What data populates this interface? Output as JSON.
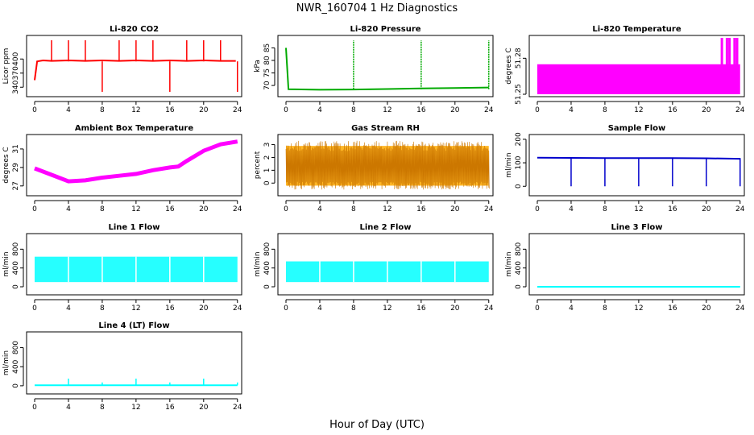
{
  "title": "NWR_160704  1 Hz Diagnostics",
  "xlabel": "Hour of Day (UTC)",
  "chart_data": [
    {
      "type": "line",
      "title": "Li-820 CO2",
      "ylabel": "Licor ppm",
      "color": "#ff0000",
      "xlim": [
        0,
        24.5
      ],
      "ylim": [
        325,
        445
      ],
      "xticks": [
        0,
        4,
        8,
        12,
        16,
        20,
        24
      ],
      "yticks": [
        340,
        370,
        400
      ],
      "series": [
        {
          "x": [
            0,
            0.3,
            1,
            2,
            4,
            6,
            8,
            10,
            12,
            14,
            16,
            18,
            20,
            22,
            23.8
          ],
          "y": [
            355,
            395,
            397,
            396,
            397,
            396,
            397,
            396,
            397,
            396,
            397,
            396,
            397,
            396,
            396
          ]
        }
      ]
    },
    {
      "type": "line",
      "title": "Li-820 Pressure",
      "ylabel": "kPa",
      "color": "#00aa00",
      "xlim": [
        0,
        24.5
      ],
      "ylim": [
        66.5,
        89
      ],
      "xticks": [
        0,
        4,
        8,
        12,
        16,
        20,
        24
      ],
      "yticks": [
        70,
        75,
        80,
        85
      ],
      "series": [
        {
          "x": [
            0,
            0.3,
            4,
            8,
            12,
            16,
            20,
            24
          ],
          "y": [
            85,
            68.5,
            68.3,
            68.4,
            68.6,
            68.8,
            69.0,
            69.2
          ]
        }
      ]
    },
    {
      "type": "area",
      "title": "Li-820 Temperature",
      "ylabel": "degrees C",
      "color": "#ff00ff",
      "xlim": [
        0,
        24.5
      ],
      "ylim": [
        51.25,
        51.297
      ],
      "xticks": [
        0,
        4,
        8,
        12,
        16,
        20,
        24
      ],
      "yticks": [
        51.25,
        51.28
      ],
      "series": [
        {
          "x": [
            0,
            21.6,
            21.8,
            22.4,
            23,
            24
          ],
          "y": [
            51.275,
            51.275,
            51.297,
            51.297,
            51.297,
            51.275
          ]
        }
      ]
    },
    {
      "type": "line",
      "title": "Ambient Box Temperature",
      "ylabel": "degrees C",
      "color": "#ff00ff",
      "xlim": [
        0,
        24.5
      ],
      "ylim": [
        26.2,
        32.3
      ],
      "xticks": [
        0,
        4,
        8,
        12,
        16,
        20,
        24
      ],
      "yticks": [
        27,
        29,
        31
      ],
      "series": [
        {
          "x": [
            0,
            2,
            4,
            6,
            8,
            10,
            12,
            14,
            16,
            17,
            18,
            20,
            22,
            24
          ],
          "y": [
            28.9,
            28.2,
            27.5,
            27.6,
            27.9,
            28.1,
            28.3,
            28.7,
            29.0,
            29.1,
            29.7,
            30.8,
            31.5,
            31.8
          ]
        }
      ]
    },
    {
      "type": "area",
      "title": "Gas Stream RH",
      "ylabel": "percent",
      "color": "#ffaa00",
      "xlim": [
        0,
        24.5
      ],
      "ylim": [
        -0.8,
        3.6
      ],
      "xticks": [
        0,
        4,
        8,
        12,
        16,
        20,
        24
      ],
      "yticks": [
        0,
        1,
        2,
        3
      ],
      "series": [
        {
          "x": [
            0,
            24
          ],
          "y_low": [
            -0.2,
            -0.2
          ],
          "y_high": [
            2.9,
            2.9
          ]
        }
      ]
    },
    {
      "type": "line",
      "title": "Sample Flow",
      "ylabel": "ml/min",
      "color": "#0000cc",
      "xlim": [
        0,
        24.5
      ],
      "ylim": [
        -30,
        210
      ],
      "xticks": [
        0,
        4,
        8,
        12,
        16,
        20,
        24
      ],
      "yticks": [
        0,
        100,
        200
      ],
      "series": [
        {
          "x": [
            0,
            4,
            8,
            12,
            16,
            20,
            24
          ],
          "y": [
            122,
            121,
            120,
            120,
            120,
            119,
            117
          ]
        }
      ]
    },
    {
      "type": "area",
      "title": "Line 1 Flow",
      "ylabel": "ml/min",
      "color": "#00ffff",
      "xlim": [
        0,
        24.5
      ],
      "ylim": [
        -120,
        1080
      ],
      "xticks": [
        0,
        4,
        8,
        12,
        16,
        20,
        24
      ],
      "yticks": [
        0,
        400,
        800
      ],
      "series": [
        {
          "x": [
            0,
            24
          ],
          "y_low": [
            100,
            100
          ],
          "y_high": [
            640,
            640
          ]
        }
      ]
    },
    {
      "type": "area",
      "title": "Line 2 Flow",
      "ylabel": "ml/min",
      "color": "#00ffff",
      "xlim": [
        0,
        24.5
      ],
      "ylim": [
        -120,
        1080
      ],
      "xticks": [
        0,
        4,
        8,
        12,
        16,
        20,
        24
      ],
      "yticks": [
        0,
        400,
        800
      ],
      "series": [
        {
          "x": [
            0,
            24
          ],
          "y_low": [
            100,
            100
          ],
          "y_high": [
            540,
            540
          ]
        }
      ]
    },
    {
      "type": "line",
      "title": "Line 3 Flow",
      "ylabel": "ml/min",
      "color": "#00ffff",
      "xlim": [
        0,
        24.5
      ],
      "ylim": [
        -120,
        1080
      ],
      "xticks": [
        0,
        4,
        8,
        12,
        16,
        20,
        24
      ],
      "yticks": [
        0,
        400,
        800
      ],
      "series": [
        {
          "x": [
            0,
            24
          ],
          "y": [
            0,
            0
          ]
        }
      ]
    },
    {
      "type": "line",
      "title": "Line 4 (LT) Flow",
      "ylabel": "ml/min",
      "color": "#00ffff",
      "xlim": [
        0,
        24.5
      ],
      "ylim": [
        -120,
        1080
      ],
      "xticks": [
        0,
        4,
        8,
        12,
        16,
        20,
        24
      ],
      "yticks": [
        0,
        400,
        800
      ],
      "series": [
        {
          "x": [
            0,
            24
          ],
          "y": [
            10,
            10
          ]
        }
      ]
    }
  ]
}
